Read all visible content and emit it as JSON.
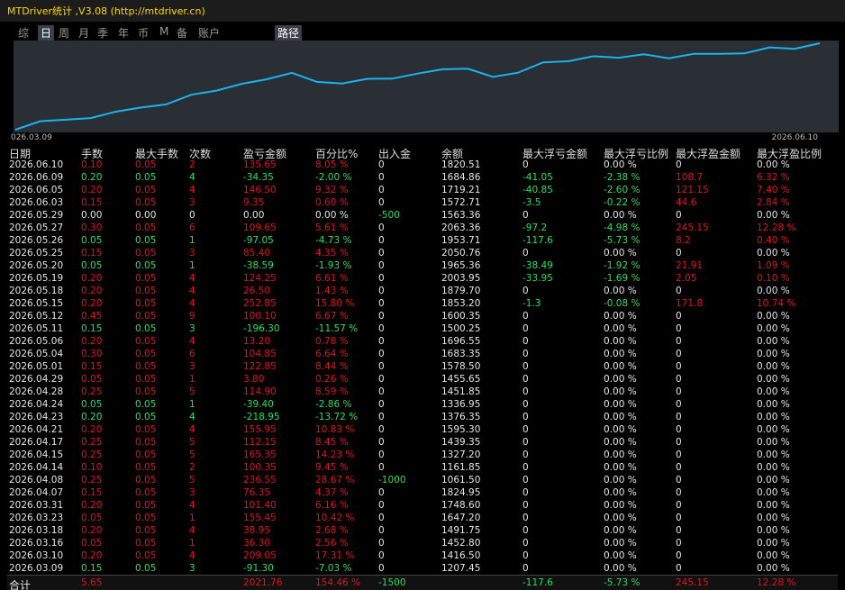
{
  "window": {
    "title": "MTDriver统计 ,V3.08 (http://mtdriver.cn)"
  },
  "tabs": [
    "综",
    "日",
    "周",
    "月",
    "季",
    "年",
    "币",
    "M",
    "备",
    "账户"
  ],
  "path_tab": "路径",
  "chart": {
    "x_start": "026.03.09",
    "x_end": "2026.06.10"
  },
  "table": {
    "headers": [
      "日期",
      "手数",
      "最大手数",
      "次数",
      "盈亏金额",
      "百分比%",
      "出入金",
      "余额",
      "最大浮亏金额",
      "最大浮亏比例",
      "最大浮盈金额",
      "最大浮盈比例"
    ],
    "rows": [
      [
        "2026.06.10",
        "0.10",
        "0.05",
        "2",
        "135.65",
        "8.05 %",
        "0",
        "1820.51",
        "0",
        "0.00 %",
        "0",
        "0.00 %"
      ],
      [
        "2026.06.09",
        "0.20",
        "0.05",
        "4",
        "-34.35",
        "-2.00 %",
        "0",
        "1684.86",
        "-41.05",
        "-2.38 %",
        "108.7",
        "6.32 %"
      ],
      [
        "2026.06.05",
        "0.20",
        "0.05",
        "4",
        "146.50",
        "9.32 %",
        "0",
        "1719.21",
        "-40.85",
        "-2.60 %",
        "121.15",
        "7.40 %"
      ],
      [
        "2026.06.03",
        "0.15",
        "0.05",
        "3",
        "9.35",
        "0.60 %",
        "0",
        "1572.71",
        "-3.5",
        "-0.22 %",
        "44.6",
        "2.84 %"
      ],
      [
        "2026.05.29",
        "0.00",
        "0.00",
        "0",
        "0.00",
        "0.00 %",
        "-500",
        "1563.36",
        "0",
        "0.00 %",
        "0",
        "0.00 %"
      ],
      [
        "2026.05.27",
        "0.30",
        "0.05",
        "6",
        "109.65",
        "5.61 %",
        "0",
        "2063.36",
        "-97.2",
        "-4.98 %",
        "245.15",
        "12.28 %"
      ],
      [
        "2026.05.26",
        "0.05",
        "0.05",
        "1",
        "-97.05",
        "-4.73 %",
        "0",
        "1953.71",
        "-117.6",
        "-5.73 %",
        "8.2",
        "0.40 %"
      ],
      [
        "2026.05.25",
        "0.15",
        "0.05",
        "3",
        "85.40",
        "4.35 %",
        "0",
        "2050.76",
        "0",
        "0.00 %",
        "0",
        "0.00 %"
      ],
      [
        "2026.05.20",
        "0.05",
        "0.05",
        "1",
        "-38.59",
        "-1.93 %",
        "0",
        "1965.36",
        "-38.49",
        "-1.92 %",
        "21.91",
        "1.09 %"
      ],
      [
        "2026.05.19",
        "0.20",
        "0.05",
        "4",
        "124.25",
        "6.61 %",
        "0",
        "2003.95",
        "-33.95",
        "-1.69 %",
        "2.05",
        "0.10 %"
      ],
      [
        "2026.05.18",
        "0.20",
        "0.05",
        "4",
        "26.50",
        "1.43 %",
        "0",
        "1879.70",
        "0",
        "0.00 %",
        "0",
        "0.00 %"
      ],
      [
        "2026.05.15",
        "0.20",
        "0.05",
        "4",
        "252.85",
        "15.80 %",
        "0",
        "1853.20",
        "-1.3",
        "-0.08 %",
        "171.8",
        "10.74 %"
      ],
      [
        "2026.05.12",
        "0.45",
        "0.05",
        "9",
        "100.10",
        "6.67 %",
        "0",
        "1600.35",
        "0",
        "0.00 %",
        "0",
        "0.00 %"
      ],
      [
        "2026.05.11",
        "0.15",
        "0.05",
        "3",
        "-196.30",
        "-11.57 %",
        "0",
        "1500.25",
        "0",
        "0.00 %",
        "0",
        "0.00 %"
      ],
      [
        "2026.05.06",
        "0.20",
        "0.05",
        "4",
        "13.20",
        "0.78 %",
        "0",
        "1696.55",
        "0",
        "0.00 %",
        "0",
        "0.00 %"
      ],
      [
        "2026.05.04",
        "0.30",
        "0.05",
        "6",
        "104.85",
        "6.64 %",
        "0",
        "1683.35",
        "0",
        "0.00 %",
        "0",
        "0.00 %"
      ],
      [
        "2026.05.01",
        "0.15",
        "0.05",
        "3",
        "122.85",
        "8.44 %",
        "0",
        "1578.50",
        "0",
        "0.00 %",
        "0",
        "0.00 %"
      ],
      [
        "2026.04.29",
        "0.05",
        "0.05",
        "1",
        "3.80",
        "0.26 %",
        "0",
        "1455.65",
        "0",
        "0.00 %",
        "0",
        "0.00 %"
      ],
      [
        "2026.04.28",
        "0.25",
        "0.05",
        "5",
        "114.90",
        "8.59 %",
        "0",
        "1451.85",
        "0",
        "0.00 %",
        "0",
        "0.00 %"
      ],
      [
        "2026.04.24",
        "0.05",
        "0.05",
        "1",
        "-39.40",
        "-2.86 %",
        "0",
        "1336.95",
        "0",
        "0.00 %",
        "0",
        "0.00 %"
      ],
      [
        "2026.04.23",
        "0.20",
        "0.05",
        "4",
        "-218.95",
        "-13.72 %",
        "0",
        "1376.35",
        "0",
        "0.00 %",
        "0",
        "0.00 %"
      ],
      [
        "2026.04.21",
        "0.20",
        "0.05",
        "4",
        "155.95",
        "10.83 %",
        "0",
        "1595.30",
        "0",
        "0.00 %",
        "0",
        "0.00 %"
      ],
      [
        "2026.04.17",
        "0.25",
        "0.05",
        "5",
        "112.15",
        "8.45 %",
        "0",
        "1439.35",
        "0",
        "0.00 %",
        "0",
        "0.00 %"
      ],
      [
        "2026.04.15",
        "0.25",
        "0.05",
        "5",
        "165.35",
        "14.23 %",
        "0",
        "1327.20",
        "0",
        "0.00 %",
        "0",
        "0.00 %"
      ],
      [
        "2026.04.14",
        "0.10",
        "0.05",
        "2",
        "100.35",
        "9.45 %",
        "0",
        "1161.85",
        "0",
        "0.00 %",
        "0",
        "0.00 %"
      ],
      [
        "2026.04.08",
        "0.25",
        "0.05",
        "5",
        "236.55",
        "28.67 %",
        "-1000",
        "1061.50",
        "0",
        "0.00 %",
        "0",
        "0.00 %"
      ],
      [
        "2026.04.07",
        "0.15",
        "0.05",
        "3",
        "76.35",
        "4.37 %",
        "0",
        "1824.95",
        "0",
        "0.00 %",
        "0",
        "0.00 %"
      ],
      [
        "2026.03.31",
        "0.20",
        "0.05",
        "4",
        "101.40",
        "6.16 %",
        "0",
        "1748.60",
        "0",
        "0.00 %",
        "0",
        "0.00 %"
      ],
      [
        "2026.03.23",
        "0.05",
        "0.05",
        "1",
        "155.45",
        "10.42 %",
        "0",
        "1647.20",
        "0",
        "0.00 %",
        "0",
        "0.00 %"
      ],
      [
        "2026.03.18",
        "0.20",
        "0.05",
        "4",
        "38.95",
        "2.68 %",
        "0",
        "1491.75",
        "0",
        "0.00 %",
        "0",
        "0.00 %"
      ],
      [
        "2026.03.16",
        "0.05",
        "0.05",
        "1",
        "36.30",
        "2.56 %",
        "0",
        "1452.80",
        "0",
        "0.00 %",
        "0",
        "0.00 %"
      ],
      [
        "2026.03.10",
        "0.20",
        "0.05",
        "4",
        "209.05",
        "17.31 %",
        "0",
        "1416.50",
        "0",
        "0.00 %",
        "0",
        "0.00 %"
      ],
      [
        "2026.03.09",
        "0.15",
        "0.05",
        "3",
        "-91.30",
        "-7.03 %",
        "0",
        "1207.45",
        "0",
        "0.00 %",
        "0",
        "0.00 %"
      ]
    ],
    "total": [
      "合计",
      "5.65",
      null,
      null,
      "2021.76",
      "154.46 %",
      "-1500",
      null,
      "-117.6",
      "-5.73 %",
      "245.15",
      "12.28 %"
    ]
  }
}
